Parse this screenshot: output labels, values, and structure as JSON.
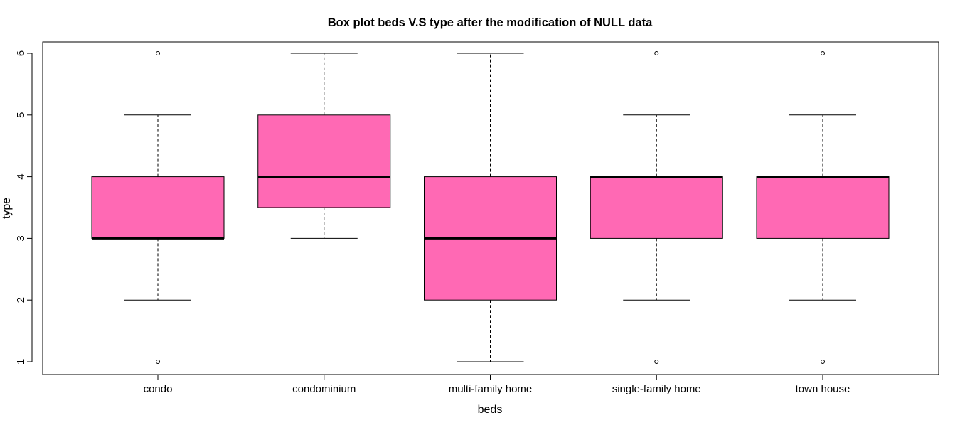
{
  "chart_data": {
    "type": "box",
    "title": "Box plot beds V.S type after the modification of NULL data",
    "xlabel": "beds",
    "ylabel": "type",
    "ylim": [
      0.8,
      6.2
    ],
    "yticks": [
      1,
      2,
      3,
      4,
      5,
      6
    ],
    "categories": [
      "condo",
      "condominium",
      "multi-family home",
      "single-family home",
      "town house"
    ],
    "box_color": "#ff69b4",
    "boxes": [
      {
        "category": "condo",
        "whisker_low": 2,
        "q1": 3,
        "median": 3,
        "q3": 4,
        "whisker_high": 5,
        "outliers": [
          1,
          6
        ]
      },
      {
        "category": "condominium",
        "whisker_low": 3,
        "q1": 3.5,
        "median": 4,
        "q3": 5,
        "whisker_high": 6,
        "outliers": []
      },
      {
        "category": "multi-family home",
        "whisker_low": 1,
        "q1": 2,
        "median": 3,
        "q3": 4,
        "whisker_high": 6,
        "outliers": []
      },
      {
        "category": "single-family home",
        "whisker_low": 2,
        "q1": 3,
        "median": 4,
        "q3": 4,
        "whisker_high": 5,
        "outliers": [
          1,
          6
        ]
      },
      {
        "category": "town house",
        "whisker_low": 2,
        "q1": 3,
        "median": 4,
        "q3": 4,
        "whisker_high": 5,
        "outliers": [
          1,
          6
        ]
      }
    ],
    "grid": false,
    "legend": "none"
  }
}
